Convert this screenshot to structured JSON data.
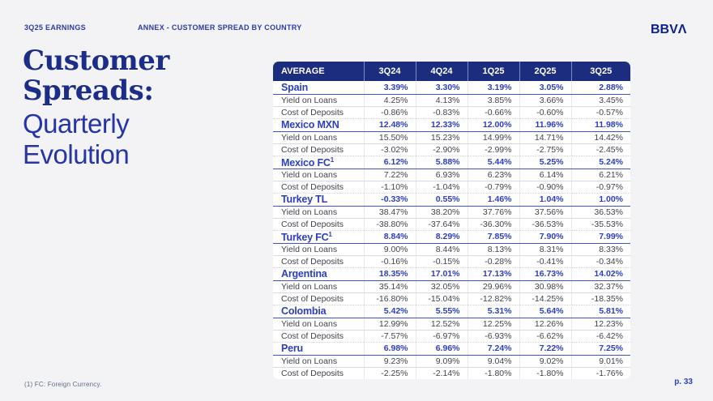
{
  "header": {
    "eyebrow_left": "3Q25 EARNINGS",
    "eyebrow_center": "ANNEX - CUSTOMER SPREAD BY COUNTRY",
    "logo_text": "BBVΛ"
  },
  "title": {
    "serif_line1": "Customer",
    "serif_line2": "Spreads:",
    "sans_line1": "Quarterly",
    "sans_line2": "Evolution"
  },
  "colors": {
    "navy_header": "#1c2c7e",
    "country_blue": "#2b3ec2",
    "title_serif_navy": "#1b2d87",
    "title_sans_blue": "#2535a5",
    "slide_background": "#f3f3f5"
  },
  "table": {
    "columns": [
      "AVERAGE",
      "3Q24",
      "4Q24",
      "1Q25",
      "2Q25",
      "3Q25"
    ],
    "row_labels": {
      "yield": "Yield on Loans",
      "cost": "Cost of Deposits"
    },
    "sections": [
      {
        "country": "Spain",
        "sup": "",
        "spread": [
          "3.39%",
          "3.30%",
          "3.19%",
          "3.05%",
          "2.88%"
        ],
        "yield": [
          "4.25%",
          "4.13%",
          "3.85%",
          "3.66%",
          "3.45%"
        ],
        "cost": [
          "-0.86%",
          "-0.83%",
          "-0.66%",
          "-0.60%",
          "-0.57%"
        ]
      },
      {
        "country": "Mexico MXN",
        "sup": "",
        "spread": [
          "12.48%",
          "12.33%",
          "12.00%",
          "11.96%",
          "11.98%"
        ],
        "yield": [
          "15.50%",
          "15.23%",
          "14.99%",
          "14.71%",
          "14.42%"
        ],
        "cost": [
          "-3.02%",
          "-2.90%",
          "-2.99%",
          "-2.75%",
          "-2.45%"
        ]
      },
      {
        "country": "Mexico FC",
        "sup": "1",
        "spread": [
          "6.12%",
          "5.88%",
          "5.44%",
          "5.25%",
          "5.24%"
        ],
        "yield": [
          "7.22%",
          "6.93%",
          "6.23%",
          "6.14%",
          "6.21%"
        ],
        "cost": [
          "-1.10%",
          "-1.04%",
          "-0.79%",
          "-0.90%",
          "-0.97%"
        ]
      },
      {
        "country": "Turkey TL",
        "sup": "",
        "spread": [
          "-0.33%",
          "0.55%",
          "1.46%",
          "1.04%",
          "1.00%"
        ],
        "yield": [
          "38.47%",
          "38.20%",
          "37.76%",
          "37.56%",
          "36.53%"
        ],
        "cost": [
          "-38.80%",
          "-37.64%",
          "-36.30%",
          "-36.53%",
          "-35.53%"
        ]
      },
      {
        "country": "Turkey FC",
        "sup": "1",
        "spread": [
          "8.84%",
          "8.29%",
          "7.85%",
          "7.90%",
          "7.99%"
        ],
        "yield": [
          "9.00%",
          "8.44%",
          "8.13%",
          "8.31%",
          "8.33%"
        ],
        "cost": [
          "-0.16%",
          "-0.15%",
          "-0.28%",
          "-0.41%",
          "-0.34%"
        ]
      },
      {
        "country": "Argentina",
        "sup": "",
        "spread": [
          "18.35%",
          "17.01%",
          "17.13%",
          "16.73%",
          "14.02%"
        ],
        "yield": [
          "35.14%",
          "32.05%",
          "29.96%",
          "30.98%",
          "32.37%"
        ],
        "cost": [
          "-16.80%",
          "-15.04%",
          "-12.82%",
          "-14.25%",
          "-18.35%"
        ]
      },
      {
        "country": "Colombia",
        "sup": "",
        "spread": [
          "5.42%",
          "5.55%",
          "5.31%",
          "5.64%",
          "5.81%"
        ],
        "yield": [
          "12.99%",
          "12.52%",
          "12.25%",
          "12.26%",
          "12.23%"
        ],
        "cost": [
          "-7.57%",
          "-6.97%",
          "-6.93%",
          "-6.62%",
          "-6.42%"
        ]
      },
      {
        "country": "Peru",
        "sup": "",
        "spread": [
          "6.98%",
          "6.96%",
          "7.24%",
          "7.22%",
          "7.25%"
        ],
        "yield": [
          "9.23%",
          "9.09%",
          "9.04%",
          "9.02%",
          "9.01%"
        ],
        "cost": [
          "-2.25%",
          "-2.14%",
          "-1.80%",
          "-1.80%",
          "-1.76%"
        ]
      }
    ]
  },
  "footer": {
    "footnote": "(1) FC: Foreign Currency.",
    "page_number": "p. 33"
  }
}
